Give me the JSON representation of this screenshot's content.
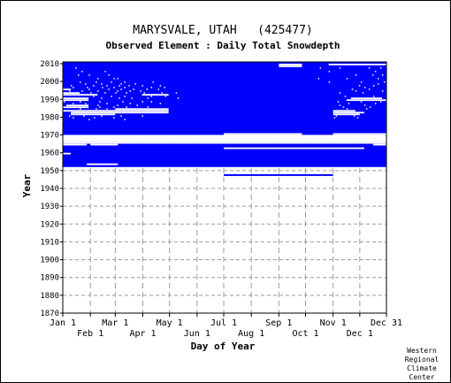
{
  "chart_data": {
    "type": "heatmap",
    "title": "MARYSVALE, UTAH   (425477)",
    "subtitle": "Observed Element : Daily Total Snowdepth",
    "xlabel": "Day of Year",
    "ylabel": "Year",
    "ylim": [
      1870,
      2011
    ],
    "xlim": [
      1,
      365
    ],
    "y_ticks": [
      1870,
      1880,
      1890,
      1900,
      1910,
      1920,
      1930,
      1940,
      1950,
      1960,
      1970,
      1980,
      1990,
      2000,
      2010
    ],
    "x_ticks_row1": [
      {
        "label": "Jan 1",
        "day": 1
      },
      {
        "label": "Mar 1",
        "day": 60
      },
      {
        "label": "May 1",
        "day": 121
      },
      {
        "label": "Jul 1",
        "day": 182
      },
      {
        "label": "Sep 1",
        "day": 244
      },
      {
        "label": "Nov 1",
        "day": 305
      },
      {
        "label": "Dec 31",
        "day": 365
      }
    ],
    "x_ticks_row2": [
      {
        "label": "Feb 1",
        "day": 32
      },
      {
        "label": "Apr 1",
        "day": 91
      },
      {
        "label": "Jun 1",
        "day": 152
      },
      {
        "label": "Aug 1",
        "day": 213
      },
      {
        "label": "Oct 1",
        "day": 274
      },
      {
        "label": "Dec 1",
        "day": 335
      }
    ],
    "grid": true,
    "observed_color": "#0000ff",
    "observed_blocks": [
      {
        "year_start": 1953,
        "year_end": 1966,
        "day_start": 1,
        "day_end": 365
      },
      {
        "year_start": 1971,
        "year_end": 2011,
        "day_start": 1,
        "day_end": 365
      }
    ],
    "observed_segments": [
      {
        "year": 1948,
        "day_start": 182,
        "day_end": 305
      }
    ],
    "missing_segments": [
      {
        "year": 1954,
        "day_start": 28,
        "day_end": 63
      },
      {
        "year": 1960,
        "day_start": 1,
        "day_end": 10
      },
      {
        "year": 1963,
        "day_start": 182,
        "day_end": 340
      },
      {
        "year": 1965,
        "day_start": 1,
        "day_end": 28
      },
      {
        "year": 1965,
        "day_start": 32,
        "day_end": 63
      },
      {
        "year": 1965,
        "day_start": 350,
        "day_end": 365
      },
      {
        "year": 1966,
        "day_start": 1,
        "day_end": 365
      },
      {
        "year": 1967,
        "day_start": 1,
        "day_end": 365
      },
      {
        "year": 1968,
        "day_start": 1,
        "day_end": 365
      },
      {
        "year": 1969,
        "day_start": 1,
        "day_end": 365
      },
      {
        "year": 1970,
        "day_start": 1,
        "day_end": 365
      },
      {
        "year": 1970,
        "day_start": 1,
        "day_end": 365
      },
      {
        "year": 1971,
        "day_start": 182,
        "day_end": 270
      },
      {
        "year": 1971,
        "day_start": 305,
        "day_end": 365
      },
      {
        "year": 1982,
        "day_start": 10,
        "day_end": 60
      },
      {
        "year": 1982,
        "day_start": 305,
        "day_end": 335
      },
      {
        "year": 1983,
        "day_start": 10,
        "day_end": 120
      },
      {
        "year": 1983,
        "day_start": 305,
        "day_end": 340
      },
      {
        "year": 1984,
        "day_start": 1,
        "day_end": 120
      },
      {
        "year": 1984,
        "day_start": 305,
        "day_end": 330
      },
      {
        "year": 1985,
        "day_start": 60,
        "day_end": 120
      },
      {
        "year": 1986,
        "day_start": 1,
        "day_end": 30
      },
      {
        "year": 1987,
        "day_start": 5,
        "day_end": 30
      },
      {
        "year": 1990,
        "day_start": 1,
        "day_end": 30
      },
      {
        "year": 1990,
        "day_start": 320,
        "day_end": 365
      },
      {
        "year": 1991,
        "day_start": 1,
        "day_end": 30
      },
      {
        "year": 1991,
        "day_start": 325,
        "day_end": 360
      },
      {
        "year": 1993,
        "day_start": 1,
        "day_end": 40
      },
      {
        "year": 1993,
        "day_start": 90,
        "day_end": 120
      },
      {
        "year": 1994,
        "day_start": 1,
        "day_end": 20
      },
      {
        "year": 1996,
        "day_start": 1,
        "day_end": 10
      },
      {
        "year": 2009,
        "day_start": 244,
        "day_end": 270
      },
      {
        "year": 2010,
        "day_start": 244,
        "day_end": 270
      },
      {
        "year": 2010,
        "day_start": 300,
        "day_end": 365
      }
    ],
    "scattered_missing_days": [
      {
        "year": 2008,
        "days": [
          15,
          290,
          312,
          345,
          358
        ]
      },
      {
        "year": 2006,
        "days": [
          22,
          48,
          300,
          352
        ]
      },
      {
        "year": 2004,
        "days": [
          18,
          30,
          52,
          330,
          349,
          360
        ]
      },
      {
        "year": 2002,
        "days": [
          40,
          58,
          62,
          288,
          320,
          355
        ]
      },
      {
        "year": 2000,
        "days": [
          20,
          38,
          55,
          70,
          102,
          300,
          336,
          362
        ]
      },
      {
        "year": 1999,
        "days": [
          26,
          44,
          66,
          82,
          355
        ]
      },
      {
        "year": 1998,
        "days": [
          10,
          35,
          50,
          64,
          75,
          90,
          110,
          334,
          350
        ]
      },
      {
        "year": 1997,
        "days": [
          12,
          28,
          45,
          58,
          70,
          100,
          115,
          340
        ]
      },
      {
        "year": 1996,
        "days": [
          30,
          52,
          66,
          80,
          95,
          108,
          326,
          345
        ]
      },
      {
        "year": 1995,
        "days": [
          8,
          22,
          40,
          62,
          76,
          88,
          330,
          360
        ]
      },
      {
        "year": 1994,
        "days": [
          32,
          48,
          60,
          72,
          92,
          112,
          128,
          312,
          338
        ]
      },
      {
        "year": 1992,
        "days": [
          35,
          55,
          70,
          100,
          116,
          318,
          350
        ]
      },
      {
        "year": 1991,
        "days": [
          44,
          64,
          78,
          96,
          130
        ]
      },
      {
        "year": 1989,
        "days": [
          2,
          20,
          42,
          68,
          90,
          100,
          310,
          336,
          358
        ]
      },
      {
        "year": 1988,
        "days": [
          12,
          26,
          50,
          76,
          110,
          322,
          352
        ]
      },
      {
        "year": 1987,
        "days": [
          40,
          62,
          84,
          312,
          340
        ]
      },
      {
        "year": 1986,
        "days": [
          42,
          58,
          72,
          96,
          316,
          346
        ]
      },
      {
        "year": 1985,
        "days": [
          20,
          38,
          50,
          320,
          342
        ]
      },
      {
        "year": 1981,
        "days": [
          8,
          24,
          44,
          66,
          90,
          308,
          328
        ]
      },
      {
        "year": 1980,
        "days": [
          12,
          36,
          58,
          306,
          332
        ]
      },
      {
        "year": 1979,
        "days": [
          30,
          70
        ]
      }
    ]
  },
  "credit": [
    "Western",
    "Regional",
    "Climate",
    "Center"
  ]
}
